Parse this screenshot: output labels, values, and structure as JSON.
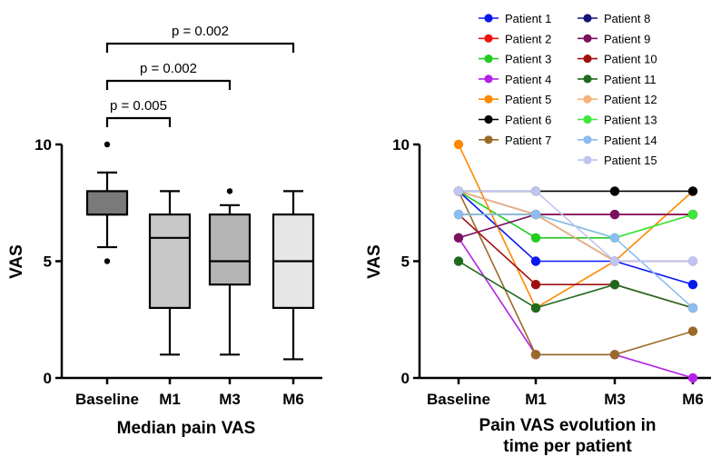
{
  "chart_data": [
    {
      "type": "box",
      "xlabel": "Median pain VAS",
      "ylabel": "VAS",
      "categories": [
        "Baseline",
        "M1",
        "M3",
        "M6"
      ],
      "ylim": [
        0,
        10
      ],
      "yticks": [
        0,
        5,
        10
      ],
      "boxes": [
        {
          "category": "Baseline",
          "whisker_low": 5.6,
          "q1": 7,
          "median": 7,
          "q3": 8,
          "whisker_high": 8.8,
          "outliers": [
            10,
            5
          ],
          "fill": "#7a7a7a"
        },
        {
          "category": "M1",
          "whisker_low": 1,
          "q1": 3,
          "median": 6,
          "q3": 7,
          "whisker_high": 8,
          "outliers": [],
          "fill": "#c8c8c8"
        },
        {
          "category": "M3",
          "whisker_low": 1,
          "q1": 4,
          "median": 5,
          "q3": 7,
          "whisker_high": 7.4,
          "outliers": [
            8
          ],
          "fill": "#b4b4b4"
        },
        {
          "category": "M6",
          "whisker_low": 0.8,
          "q1": 3,
          "median": 5,
          "q3": 7,
          "whisker_high": 8,
          "outliers": [],
          "fill": "#e6e6e6"
        }
      ],
      "annotations": [
        {
          "from": "Baseline",
          "to": "M1",
          "label": "p = 0.005"
        },
        {
          "from": "Baseline",
          "to": "M3",
          "label": "p = 0.002"
        },
        {
          "from": "Baseline",
          "to": "M6",
          "label": "p = 0.002"
        }
      ]
    },
    {
      "type": "line",
      "xlabel": [
        "Pain VAS evolution in",
        "time per patient"
      ],
      "ylabel": "VAS",
      "categories": [
        "Baseline",
        "M1",
        "M3",
        "M6"
      ],
      "ylim": [
        0,
        10
      ],
      "yticks": [
        0,
        5,
        10
      ],
      "legend_position": "top-right",
      "series": [
        {
          "name": "Patient 1",
          "color": "#0a18f0",
          "values": [
            8,
            5,
            5,
            4
          ]
        },
        {
          "name": "Patient 2",
          "color": "#ee1111",
          "values": [
            7,
            7,
            7,
            7
          ]
        },
        {
          "name": "Patient 3",
          "color": "#22cc22",
          "values": [
            8,
            6,
            6,
            7
          ]
        },
        {
          "name": "Patient 4",
          "color": "#b420e8",
          "values": [
            6,
            1,
            1,
            0
          ]
        },
        {
          "name": "Patient 5",
          "color": "#ff8800",
          "values": [
            10,
            3,
            5,
            8
          ]
        },
        {
          "name": "Patient 6",
          "color": "#000000",
          "values": [
            8,
            8,
            8,
            8
          ]
        },
        {
          "name": "Patient 7",
          "color": "#9a6a28",
          "values": [
            8,
            1,
            1,
            2
          ]
        },
        {
          "name": "Patient 8",
          "color": "#14147a",
          "values": [
            8,
            7,
            5,
            5
          ]
        },
        {
          "name": "Patient 9",
          "color": "#7a1260",
          "values": [
            6,
            7,
            7,
            7
          ]
        },
        {
          "name": "Patient 10",
          "color": "#a01010",
          "values": [
            7,
            4,
            4,
            3
          ]
        },
        {
          "name": "Patient 11",
          "color": "#1e6a1e",
          "values": [
            5,
            3,
            4,
            3
          ]
        },
        {
          "name": "Patient 12",
          "color": "#f5b37a",
          "values": [
            8,
            7,
            5,
            5
          ]
        },
        {
          "name": "Patient 13",
          "color": "#3ce83c",
          "values": [
            7,
            7,
            6,
            7
          ]
        },
        {
          "name": "Patient 14",
          "color": "#8cbcf0",
          "values": [
            7,
            7,
            6,
            3
          ]
        },
        {
          "name": "Patient 15",
          "color": "#c0c4f0",
          "values": [
            8,
            8,
            5,
            5
          ]
        }
      ]
    }
  ]
}
